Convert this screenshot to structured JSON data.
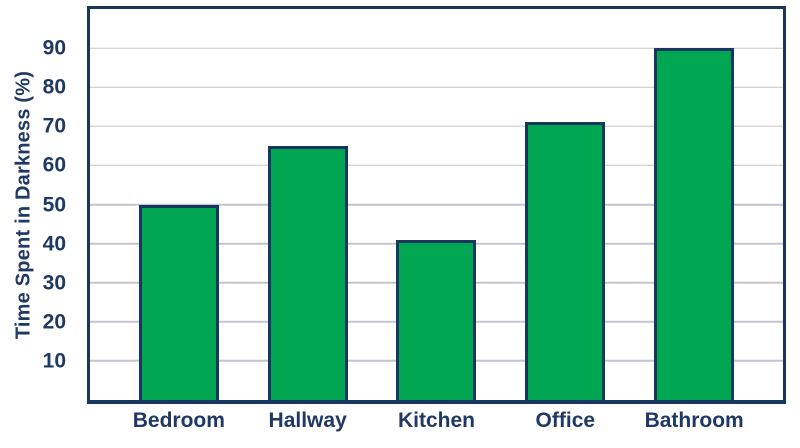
{
  "chart_data": {
    "type": "bar",
    "categories": [
      "Bedroom",
      "Hallway",
      "Kitchen",
      "Office",
      "Bathroom"
    ],
    "values": [
      50,
      65,
      41,
      71,
      90
    ],
    "ylabel": "Time Spent in Darkness (%)",
    "ylim": [
      0,
      100
    ],
    "yticks": [
      10,
      20,
      30,
      40,
      50,
      60,
      70,
      80,
      90
    ],
    "grid": true,
    "legend_position": "none",
    "plot_border": "box",
    "colors": {
      "bar_fill": "#00a651",
      "bar_border": "#17375e",
      "axis": "#17375e",
      "text": "#1f3864",
      "gridline": "#c2c5cd",
      "background": "#ffffff"
    }
  }
}
